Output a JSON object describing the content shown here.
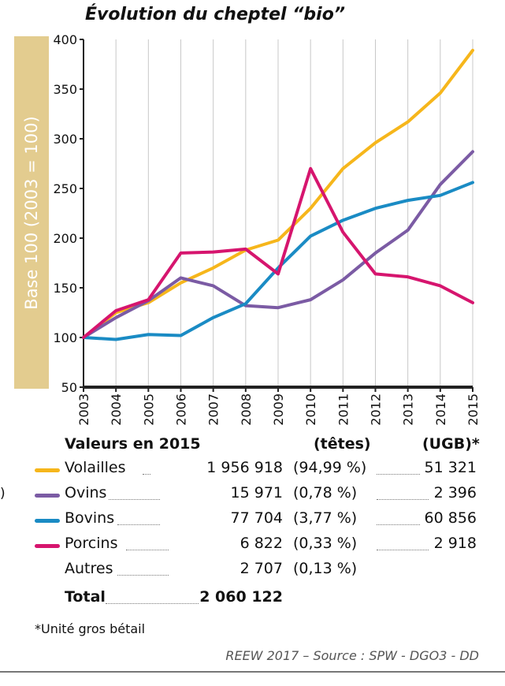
{
  "title": "Évolution du cheptel “bio”",
  "edge_mark": ")",
  "chart_data": {
    "type": "line",
    "title": "Évolution du cheptel “bio”",
    "ylabel": "Base 100 (2003 = 100)",
    "xlabel": "",
    "x": [
      "2003",
      "2004",
      "2005",
      "2006",
      "2007",
      "2008",
      "2009",
      "2010",
      "2011",
      "2012",
      "2013",
      "2014",
      "2015"
    ],
    "ylim": [
      50,
      400
    ],
    "yticks": [
      50,
      100,
      150,
      200,
      250,
      300,
      350,
      400
    ],
    "grid": "vertical",
    "series": [
      {
        "name": "Volailles",
        "color": "#f6b61b",
        "values": [
          100,
          125,
          135,
          155,
          170,
          188,
          198,
          230,
          270,
          296,
          317,
          346,
          389
        ]
      },
      {
        "name": "Ovins",
        "color": "#7b5ba4",
        "values": [
          100,
          120,
          137,
          160,
          152,
          132,
          130,
          138,
          158,
          185,
          208,
          254,
          287
        ]
      },
      {
        "name": "Bovins",
        "color": "#1a8bc4",
        "values": [
          100,
          98,
          103,
          102,
          120,
          134,
          170,
          202,
          218,
          230,
          238,
          243,
          256
        ]
      },
      {
        "name": "Porcins",
        "color": "#d6156e",
        "values": [
          100,
          127,
          138,
          185,
          186,
          189,
          164,
          270,
          206,
          164,
          161,
          152,
          135
        ]
      }
    ]
  },
  "table": {
    "heading": "Valeurs en 2015",
    "col_tetes": "(têtes)",
    "col_ugb": "(UGB)*",
    "rows": [
      {
        "label": "Volailles",
        "color": "#f6b61b",
        "tetes": "1 956 918",
        "pct": "(94,99 %)",
        "ugb": "51 321"
      },
      {
        "label": "Ovins",
        "color": "#7b5ba4",
        "tetes": "15 971",
        "pct": "(0,78 %)",
        "ugb": "2 396"
      },
      {
        "label": "Bovins",
        "color": "#1a8bc4",
        "tetes": "77 704",
        "pct": "(3,77 %)",
        "ugb": "60 856"
      },
      {
        "label": "Porcins",
        "color": "#d6156e",
        "tetes": "6 822",
        "pct": "(0,33 %)",
        "ugb": "2 918"
      },
      {
        "label": "Autres",
        "color": "",
        "tetes": "2 707",
        "pct": "(0,13 %)",
        "ugb": ""
      }
    ],
    "total_label": "Total",
    "total_value": "2 060 122"
  },
  "footnote": "*Unité gros bétail",
  "source": "REEW 2017 – Source : SPW - DGO3 - DD"
}
